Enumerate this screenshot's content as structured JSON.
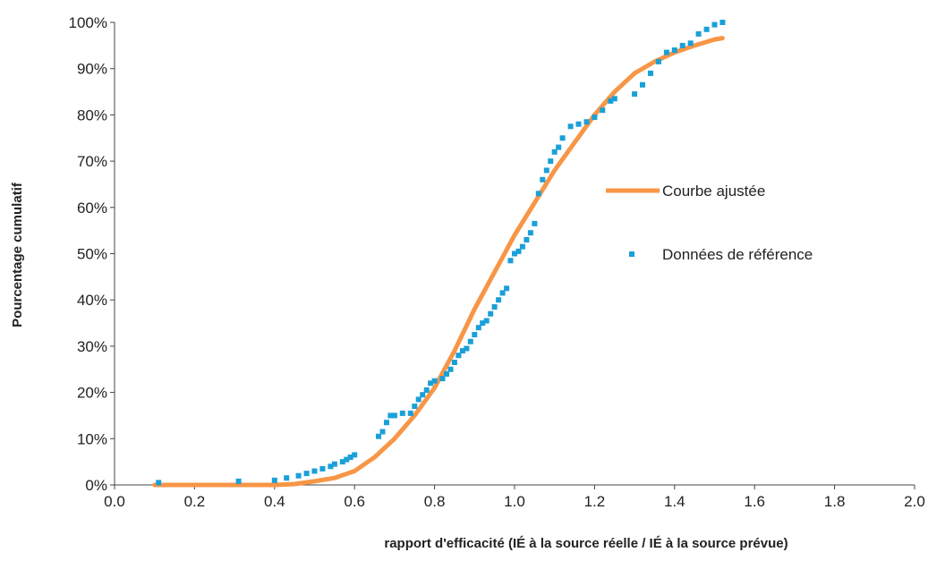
{
  "chart_data": {
    "type": "scatter",
    "title": "",
    "xlabel": "rapport d'efficacité (IÉ à la source réelle / IÉ à la source  prévue)",
    "ylabel": "Pourcentage cumulatif",
    "xlim": [
      0.0,
      2.0
    ],
    "ylim": [
      0,
      100
    ],
    "x_ticks": [
      "0.0",
      "0.2",
      "0.4",
      "0.6",
      "0.8",
      "1.0",
      "1.2",
      "1.4",
      "1.6",
      "1.8",
      "2.0"
    ],
    "y_ticks": [
      "0%",
      "10%",
      "20%",
      "30%",
      "40%",
      "50%",
      "60%",
      "70%",
      "80%",
      "90%",
      "100%"
    ],
    "grid": false,
    "legend_position": "right",
    "series": [
      {
        "name": "Courbe ajustée",
        "kind": "line",
        "color": "#F79646",
        "x": [
          0.1,
          0.3,
          0.4,
          0.45,
          0.5,
          0.55,
          0.6,
          0.65,
          0.7,
          0.75,
          0.8,
          0.85,
          0.9,
          0.95,
          1.0,
          1.05,
          1.1,
          1.15,
          1.2,
          1.25,
          1.3,
          1.35,
          1.4,
          1.45,
          1.5,
          1.52
        ],
        "y": [
          0,
          0,
          0,
          0.2,
          0.8,
          1.5,
          3,
          6,
          10,
          15,
          21,
          29,
          38,
          46,
          54,
          61,
          68,
          74,
          80,
          85,
          89,
          91.5,
          93.5,
          95,
          96.3,
          96.6
        ]
      },
      {
        "name": "Données de référence",
        "kind": "scatter",
        "color": "#1AA0D8",
        "x": [
          0.11,
          0.31,
          0.4,
          0.43,
          0.46,
          0.48,
          0.5,
          0.52,
          0.54,
          0.55,
          0.57,
          0.58,
          0.59,
          0.6,
          0.66,
          0.67,
          0.68,
          0.69,
          0.7,
          0.72,
          0.74,
          0.75,
          0.76,
          0.77,
          0.78,
          0.79,
          0.8,
          0.82,
          0.83,
          0.84,
          0.85,
          0.86,
          0.87,
          0.88,
          0.89,
          0.9,
          0.91,
          0.92,
          0.93,
          0.94,
          0.95,
          0.96,
          0.97,
          0.98,
          0.99,
          1.0,
          1.01,
          1.02,
          1.03,
          1.04,
          1.05,
          1.06,
          1.07,
          1.08,
          1.09,
          1.1,
          1.11,
          1.12,
          1.14,
          1.16,
          1.18,
          1.2,
          1.22,
          1.24,
          1.25,
          1.3,
          1.32,
          1.34,
          1.36,
          1.38,
          1.4,
          1.42,
          1.44,
          1.46,
          1.48,
          1.5,
          1.52
        ],
        "y": [
          0.5,
          0.8,
          1.0,
          1.5,
          2.0,
          2.5,
          3.0,
          3.5,
          4.0,
          4.5,
          5.0,
          5.5,
          6.0,
          6.5,
          10.5,
          11.5,
          13.5,
          15.0,
          15.0,
          15.5,
          15.5,
          17.0,
          18.5,
          19.5,
          20.5,
          22.0,
          22.5,
          23.0,
          24.0,
          25.0,
          26.5,
          28.0,
          29.0,
          29.5,
          31.0,
          32.5,
          34.0,
          35.0,
          35.5,
          37.0,
          38.5,
          40.0,
          41.5,
          42.5,
          48.5,
          50.0,
          50.5,
          51.5,
          53.0,
          54.5,
          56.5,
          63.0,
          66.0,
          68.0,
          70.0,
          72.0,
          73.0,
          75.0,
          77.5,
          78.0,
          78.5,
          79.5,
          81.0,
          83.0,
          83.5,
          84.5,
          86.5,
          89.0,
          91.5,
          93.5,
          94.0,
          95.0,
          95.5,
          97.5,
          98.5,
          99.5,
          100.0
        ]
      }
    ]
  }
}
